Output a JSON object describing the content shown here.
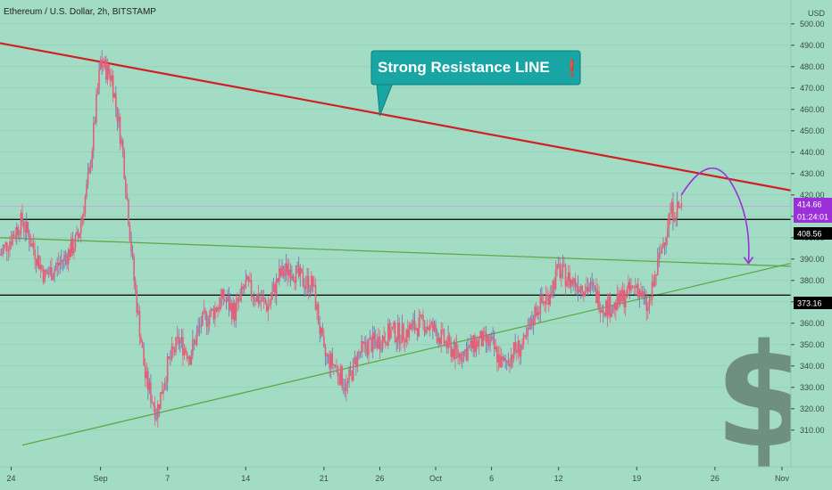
{
  "chart_data": {
    "type": "candlestick",
    "title": "Ethereum / U.S. Dollar, 2h, BITSTAMP",
    "currency": "USD",
    "ylim": [
      302,
      502
    ],
    "y_ticks": [
      310,
      320,
      330,
      340,
      350,
      360,
      370,
      380,
      390,
      400,
      410,
      420,
      430,
      440,
      450,
      460,
      470,
      480,
      490,
      500
    ],
    "y_tick_labels": [
      "310.00",
      "320.00",
      "330.00",
      "340.00",
      "350.00",
      "360.00",
      "370.00",
      "380.00",
      "390.00",
      "400.00",
      "410.00",
      "420.00",
      "430.00",
      "440.00",
      "450.00",
      "460.00",
      "470.00",
      "480.00",
      "490.00",
      "500.00"
    ],
    "x_range": [
      "2020-08-23",
      "2020-11-05"
    ],
    "x_ticks": [
      {
        "date": "2020-08-24",
        "label": "24"
      },
      {
        "date": "2020-09-01",
        "label": "Sep"
      },
      {
        "date": "2020-09-07",
        "label": "7"
      },
      {
        "date": "2020-09-14",
        "label": "14"
      },
      {
        "date": "2020-09-21",
        "label": "21"
      },
      {
        "date": "2020-09-26",
        "label": "26"
      },
      {
        "date": "2020-10-01",
        "label": "Oct"
      },
      {
        "date": "2020-10-06",
        "label": "6"
      },
      {
        "date": "2020-10-12",
        "label": "12"
      },
      {
        "date": "2020-10-19",
        "label": "19"
      },
      {
        "date": "2020-10-26",
        "label": "26"
      },
      {
        "date": "2020-11-01",
        "label": "Nov"
      }
    ],
    "price_path": [
      [
        "2020-08-23",
        392
      ],
      [
        "2020-08-24",
        400
      ],
      [
        "2020-08-25",
        408
      ],
      [
        "2020-08-26",
        395
      ],
      [
        "2020-08-27",
        382
      ],
      [
        "2020-08-28",
        386
      ],
      [
        "2020-08-29",
        392
      ],
      [
        "2020-08-30",
        400
      ],
      [
        "2020-08-31",
        430
      ],
      [
        "2020-09-01",
        482
      ],
      [
        "2020-09-02",
        475
      ],
      [
        "2020-09-03",
        440
      ],
      [
        "2020-09-04",
        380
      ],
      [
        "2020-09-05",
        335
      ],
      [
        "2020-09-06",
        318
      ],
      [
        "2020-09-07",
        340
      ],
      [
        "2020-09-08",
        352
      ],
      [
        "2020-09-09",
        345
      ],
      [
        "2020-09-10",
        360
      ],
      [
        "2020-09-11",
        365
      ],
      [
        "2020-09-12",
        372
      ],
      [
        "2020-09-13",
        365
      ],
      [
        "2020-09-14",
        378
      ],
      [
        "2020-09-15",
        372
      ],
      [
        "2020-09-16",
        368
      ],
      [
        "2020-09-17",
        382
      ],
      [
        "2020-09-18",
        386
      ],
      [
        "2020-09-19",
        380
      ],
      [
        "2020-09-20",
        378
      ],
      [
        "2020-09-21",
        345
      ],
      [
        "2020-09-22",
        340
      ],
      [
        "2020-09-23",
        330
      ],
      [
        "2020-09-24",
        345
      ],
      [
        "2020-09-25",
        350
      ],
      [
        "2020-09-26",
        352
      ],
      [
        "2020-09-27",
        356
      ],
      [
        "2020-09-28",
        355
      ],
      [
        "2020-09-29",
        358
      ],
      [
        "2020-09-30",
        360
      ],
      [
        "2020-10-01",
        356
      ],
      [
        "2020-10-02",
        350
      ],
      [
        "2020-10-03",
        345
      ],
      [
        "2020-10-04",
        348
      ],
      [
        "2020-10-05",
        352
      ],
      [
        "2020-10-06",
        350
      ],
      [
        "2020-10-07",
        340
      ],
      [
        "2020-10-08",
        347
      ],
      [
        "2020-10-09",
        350
      ],
      [
        "2020-10-10",
        367
      ],
      [
        "2020-10-11",
        372
      ],
      [
        "2020-10-12",
        385
      ],
      [
        "2020-10-13",
        380
      ],
      [
        "2020-10-14",
        378
      ],
      [
        "2020-10-15",
        376
      ],
      [
        "2020-10-16",
        368
      ],
      [
        "2020-10-17",
        368
      ],
      [
        "2020-10-18",
        373
      ],
      [
        "2020-10-19",
        378
      ],
      [
        "2020-10-20",
        366
      ],
      [
        "2020-10-21",
        390
      ],
      [
        "2020-10-22",
        412
      ],
      [
        "2020-10-23",
        414.66
      ]
    ],
    "lines": [
      {
        "type": "resistance",
        "color": "#d11f24",
        "points": [
          [
            "2020-08-23",
            491
          ],
          [
            "2020-11-05",
            419
          ]
        ]
      },
      {
        "type": "upper-trend",
        "color": "#5fa84a",
        "points": [
          [
            "2020-08-23",
            400
          ],
          [
            "2020-11-05",
            386
          ]
        ]
      },
      {
        "type": "rising-support",
        "color": "#5fa84a",
        "points": [
          [
            "2020-08-25",
            303
          ],
          [
            "2020-11-05",
            392
          ]
        ]
      },
      {
        "type": "level",
        "color": "#000000",
        "points": [
          [
            "2020-08-23",
            408.56
          ],
          [
            "2020-11-05",
            408.56
          ]
        ]
      },
      {
        "type": "level",
        "color": "#000000",
        "points": [
          [
            "2020-08-23",
            373.16
          ],
          [
            "2020-11-05",
            373.16
          ]
        ]
      }
    ],
    "projection_arrow": {
      "color": "#9b30d9",
      "points": [
        [
          "2020-10-23",
          420
        ],
        [
          "2020-10-26",
          430
        ],
        [
          "2020-10-29",
          388
        ]
      ]
    },
    "price_tags": [
      {
        "value": 414.66,
        "label": "414.66",
        "bg": "#9b30d9",
        "fg": "#ffffff"
      },
      {
        "value": 409.2,
        "label": "01:24:01",
        "bg": "#9b30d9",
        "fg": "#ffffff"
      },
      {
        "value": 408.56,
        "label": "408.56",
        "bg": "#000000",
        "fg": "#ffffff"
      },
      {
        "value": 373.16,
        "label": "373.16",
        "bg": "#000000",
        "fg": "#ffffff"
      }
    ],
    "annotation": {
      "text": "Strong Resistance LINE",
      "glyph": "❗",
      "bg": "#1aa5a5",
      "pointer": [
        "2020-09-26",
        457
      ]
    },
    "watermark_icon": "dollar-sign-icon",
    "colors": {
      "background": "#a3dcc4",
      "candle": "#e0607a",
      "candle_shadow": "#7a6ab0"
    }
  }
}
